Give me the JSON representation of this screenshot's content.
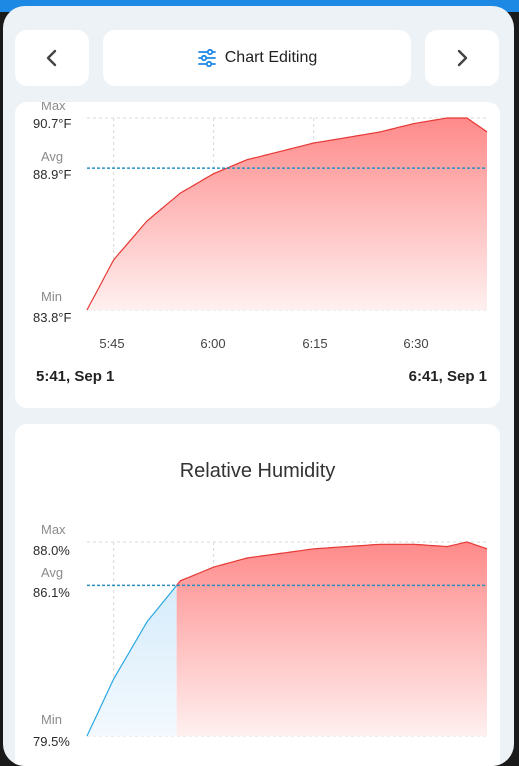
{
  "nav": {
    "prev_icon": "chevron-left-icon",
    "next_icon": "chevron-right-icon",
    "title_icon": "sliders-icon",
    "title": "Chart Editing"
  },
  "colors": {
    "accent": "#1e88e5",
    "line_red": "#e53935",
    "line_blue": "#29a8e0",
    "avg_line": "#2a8fc0"
  },
  "temperature_chart": {
    "labels": {
      "max": "Max",
      "avg": "Avg",
      "min": "Min"
    },
    "max_value": "90.7°F",
    "avg_value": "88.9°F",
    "min_value": "83.8°F",
    "x_ticks": [
      "5:45",
      "6:00",
      "6:15",
      "6:30"
    ],
    "range_start": "5:41,  Sep 1",
    "range_end": "6:41,  Sep 1"
  },
  "humidity_chart": {
    "title": "Relative Humidity",
    "labels": {
      "max": "Max",
      "avg": "Avg",
      "min": "Min"
    },
    "max_value": "88.0%",
    "avg_value": "86.1%",
    "min_value": "79.5%"
  },
  "chart_data": [
    {
      "type": "area",
      "xlabel": "",
      "ylabel": "",
      "xlim": [
        "5:41",
        "6:41"
      ],
      "ylim": [
        83.8,
        90.7
      ],
      "avg": 88.9,
      "x_ticks": [
        "5:45",
        "6:00",
        "6:15",
        "6:30"
      ],
      "x": [
        5.41,
        5.45,
        5.5,
        5.55,
        6.0,
        6.05,
        6.1,
        6.15,
        6.2,
        6.25,
        6.3,
        6.35,
        6.38,
        6.41
      ],
      "x_minutes": [
        0,
        4,
        9,
        14,
        19,
        24,
        29,
        34,
        39,
        44,
        49,
        54,
        57,
        60
      ],
      "y": [
        83.8,
        85.6,
        87.0,
        88.0,
        88.7,
        89.2,
        89.5,
        89.8,
        90.0,
        90.2,
        90.5,
        90.7,
        90.7,
        90.2
      ]
    },
    {
      "type": "area",
      "title": "Relative Humidity",
      "xlabel": "",
      "ylabel": "",
      "ylim": [
        79.5,
        88.0
      ],
      "avg": 86.1,
      "x_minutes": [
        0,
        4,
        9,
        14,
        19,
        24,
        29,
        34,
        39,
        44,
        49,
        54,
        57,
        60
      ],
      "y": [
        79.5,
        82.0,
        84.5,
        86.3,
        86.9,
        87.3,
        87.5,
        87.7,
        87.8,
        87.9,
        87.9,
        87.8,
        88.0,
        87.7
      ]
    }
  ]
}
